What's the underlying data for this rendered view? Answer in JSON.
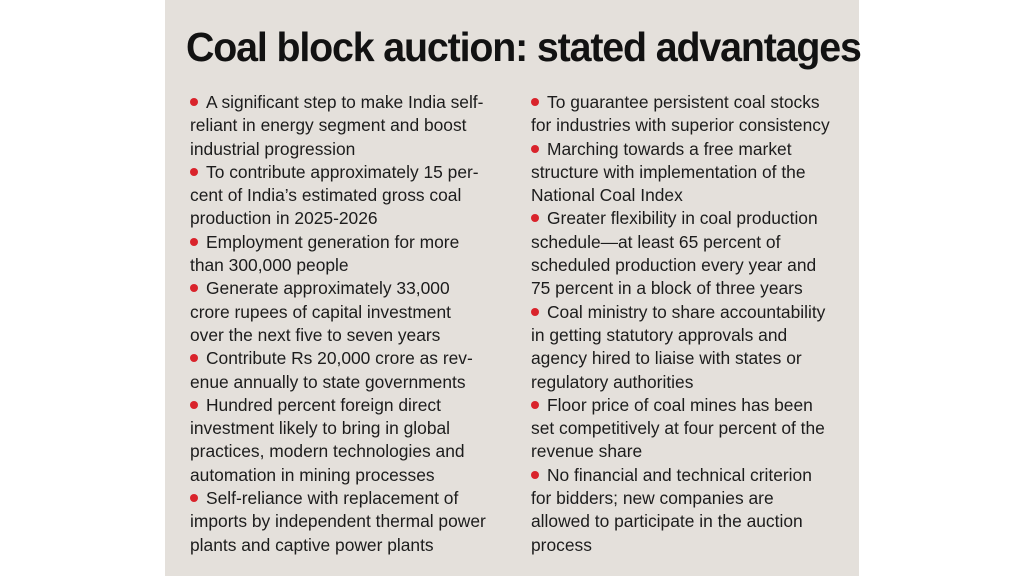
{
  "title": "Coal block auction: stated advantages",
  "bullet_color": "#d9232b",
  "left_column": [
    {
      "lines": [
        "A significant step to make India self-",
        "reliant in energy segment and boost",
        "industrial progression"
      ]
    },
    {
      "lines": [
        "To contribute approximately 15 per-",
        "cent of India’s estimated gross coal",
        "production in 2025-2026"
      ]
    },
    {
      "lines": [
        "Employment generation for more",
        "than 300,000 people"
      ]
    },
    {
      "lines": [
        "Generate approximately 33,000",
        "crore rupees of capital investment",
        "over the next five to seven years"
      ]
    },
    {
      "lines": [
        "Contribute Rs 20,000 crore as rev-",
        "enue annually to state governments"
      ]
    },
    {
      "lines": [
        "Hundred percent foreign direct",
        "investment likely to bring in global",
        "practices, modern technologies and",
        "automation in mining processes"
      ]
    },
    {
      "lines": [
        "Self-reliance with replacement of",
        "imports by independent thermal power",
        "plants and captive power plants"
      ]
    }
  ],
  "right_column": [
    {
      "lines": [
        "To guarantee persistent coal stocks",
        "for industries with superior consistency"
      ]
    },
    {
      "lines": [
        "Marching towards a free market",
        "structure with implementation of the",
        "National Coal Index"
      ]
    },
    {
      "lines": [
        "Greater flexibility in coal production",
        "schedule—at least 65 percent of",
        "scheduled production every year and",
        "75 percent in a block of three years"
      ]
    },
    {
      "lines": [
        "Coal ministry to share accountability",
        "in getting statutory approvals and",
        "agency hired to liaise with states or",
        "regulatory authorities"
      ]
    },
    {
      "lines": [
        "Floor price of coal mines has been",
        "set competitively at four percent of the",
        "revenue share"
      ]
    },
    {
      "lines": [
        "No financial and technical criterion",
        "for bidders; new companies are",
        "allowed to participate in the auction",
        "process"
      ]
    }
  ]
}
